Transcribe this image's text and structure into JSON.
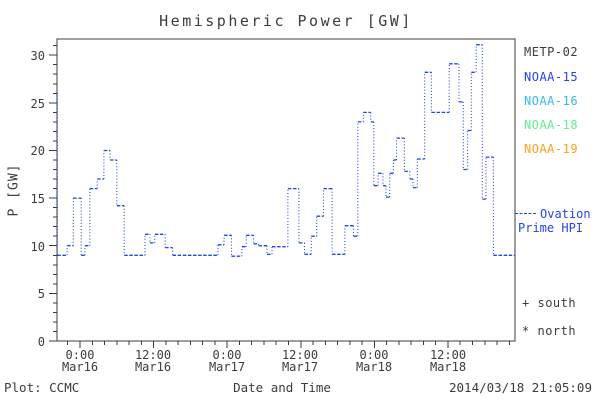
{
  "title": "Hemispheric Power [GW]",
  "colors": {
    "background": "#ffffff",
    "axis": "#3c3c3c",
    "text": "#3c3c3c",
    "data_line": "#2244ee",
    "ovation": "#2244ee"
  },
  "legend": {
    "satellites": [
      {
        "label": "METP-02",
        "color": "#3c3c3c"
      },
      {
        "label": "NOAA-15",
        "color": "#2244ee"
      },
      {
        "label": "NOAA-16",
        "color": "#33bbee"
      },
      {
        "label": "NOAA-18",
        "color": "#66ee88"
      },
      {
        "label": "NOAA-19",
        "color": "#ffa022"
      }
    ],
    "line_legend": {
      "label_line1": "Ovation",
      "label_line2": "Prime HPI"
    },
    "markers": [
      {
        "symbol": "+",
        "label": "south"
      },
      {
        "symbol": "*",
        "label": "north"
      }
    ]
  },
  "footer": {
    "left": "Plot: CCMC",
    "xaxis_title": "Date and Time",
    "timestamp": "2014/03/18 21:05:09"
  },
  "chart_data": {
    "type": "line",
    "line_style": "dotted-step",
    "title": "Hemispheric Power [GW]",
    "ylabel": "P [GW]",
    "xlabel": "Date and Time",
    "x_unit": "hours from 2014-03-16 00:00 UT",
    "xlim": [
      -3.75,
      70.93
    ],
    "ylim": [
      0,
      31.7
    ],
    "grid": false,
    "legend_position": "right-outside",
    "y_major_ticks": [
      0,
      5,
      10,
      15,
      20,
      25,
      30
    ],
    "y_tick_labels": [
      "0",
      "5",
      "10",
      "15",
      "20",
      "25",
      "30"
    ],
    "y_minor_step": 1,
    "x_major_ticks": [
      0,
      12,
      24,
      36,
      48,
      60
    ],
    "x_minor_step": 2,
    "x_tick_labels": [
      {
        "time": "0:00",
        "date": "Mar16"
      },
      {
        "time": "12:00",
        "date": "Mar16"
      },
      {
        "time": "0:00",
        "date": "Mar17"
      },
      {
        "time": "12:00",
        "date": "Mar17"
      },
      {
        "time": "0:00",
        "date": "Mar18"
      },
      {
        "time": "12:00",
        "date": "Mar18"
      }
    ],
    "series_name": "Ovation Prime HPI",
    "steps": [
      [
        -3.75,
        26.1
      ],
      [
        -3.7,
        9.0
      ],
      [
        -2.1,
        10.0
      ],
      [
        -1.1,
        15.0
      ],
      [
        0.2,
        9.0
      ],
      [
        0.8,
        10.0
      ],
      [
        1.6,
        16.0
      ],
      [
        2.8,
        17.0
      ],
      [
        3.9,
        20.0
      ],
      [
        4.9,
        19.0
      ],
      [
        6.0,
        14.2
      ],
      [
        7.2,
        9.0
      ],
      [
        10.6,
        11.2
      ],
      [
        11.4,
        10.3
      ],
      [
        12.2,
        11.2
      ],
      [
        13.9,
        9.8
      ],
      [
        15.1,
        9.0
      ],
      [
        22.5,
        10.1
      ],
      [
        23.5,
        11.1
      ],
      [
        24.7,
        8.9
      ],
      [
        26.4,
        9.9
      ],
      [
        27.1,
        11.1
      ],
      [
        28.3,
        10.2
      ],
      [
        29.1,
        10.0
      ],
      [
        30.5,
        9.1
      ],
      [
        31.3,
        9.9
      ],
      [
        33.9,
        16.0
      ],
      [
        35.7,
        10.3
      ],
      [
        36.6,
        9.1
      ],
      [
        37.7,
        11.0
      ],
      [
        38.6,
        13.1
      ],
      [
        39.7,
        16.0
      ],
      [
        41.1,
        9.1
      ],
      [
        43.2,
        12.1
      ],
      [
        44.6,
        11.0
      ],
      [
        45.3,
        23.0
      ],
      [
        46.2,
        24.0
      ],
      [
        47.4,
        23.0
      ],
      [
        47.9,
        16.3
      ],
      [
        48.6,
        17.6
      ],
      [
        49.4,
        16.3
      ],
      [
        49.9,
        15.1
      ],
      [
        50.5,
        17.6
      ],
      [
        51.1,
        19.0
      ],
      [
        51.6,
        21.3
      ],
      [
        52.9,
        17.8
      ],
      [
        53.8,
        17.0
      ],
      [
        54.3,
        16.1
      ],
      [
        55.0,
        19.1
      ],
      [
        56.2,
        28.2
      ],
      [
        57.3,
        24.0
      ],
      [
        60.2,
        29.1
      ],
      [
        61.8,
        25.1
      ],
      [
        62.5,
        18.0
      ],
      [
        63.2,
        22.1
      ],
      [
        63.8,
        28.2
      ],
      [
        64.6,
        31.1
      ],
      [
        65.6,
        14.9
      ],
      [
        66.2,
        19.3
      ],
      [
        67.4,
        9.0
      ],
      [
        70.93,
        9.0
      ]
    ]
  }
}
